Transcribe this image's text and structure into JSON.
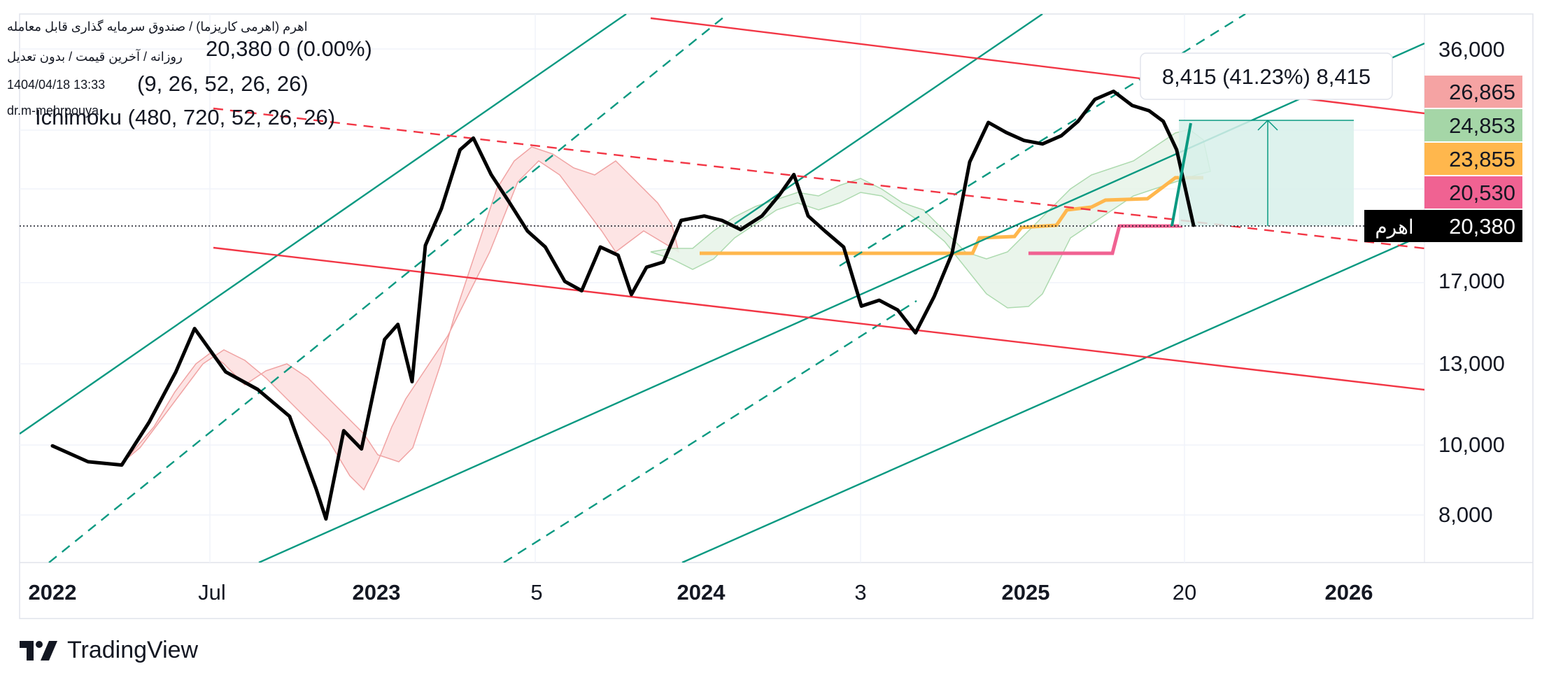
{
  "header": {
    "symbol_line": "اهرم (اهرمی کاریزما) / صندوق سرمایه گذاری قابل معامله",
    "price_line": "20,380  0 (0.00%)",
    "interval_line": "روزانه / آخرین قیمت / بدون تعدیل",
    "ichimoku_short": "(9, 26, 52, 26, 26)",
    "datetime": "1404/04/18 13:33",
    "author": "dr.m-mehrpouya",
    "ichimoku_long": "Ichimoku (480, 720, 52, 26, 26)"
  },
  "measure_label": "8,415 (41.23%) 8,415",
  "price_axis": {
    "scale": "log",
    "ticks": [
      "36,000",
      "17,000",
      "13,000",
      "10,000",
      "8,000"
    ]
  },
  "time_axis": {
    "ticks": [
      {
        "label": "2022",
        "bold": true
      },
      {
        "label": "Jul",
        "bold": false
      },
      {
        "label": "2023",
        "bold": true
      },
      {
        "label": "5",
        "bold": false
      },
      {
        "label": "2024",
        "bold": true
      },
      {
        "label": "3",
        "bold": false
      },
      {
        "label": "2025",
        "bold": true
      },
      {
        "label": "20",
        "bold": false
      },
      {
        "label": "2026",
        "bold": true
      }
    ]
  },
  "price_tags": [
    {
      "value": "26,865",
      "color": "#f5a3a3"
    },
    {
      "value": "24,853",
      "color": "#a5d6a7"
    },
    {
      "value": "23,855",
      "color": "#ffb74d"
    },
    {
      "value": "20,530",
      "color": "#f06292"
    },
    {
      "value": "20,380",
      "color": "#000000",
      "text_color": "#ffffff",
      "symbol": "اهرم"
    }
  ],
  "footer": {
    "brand": "TradingView"
  },
  "colors": {
    "price_line": "#000000",
    "channel_green": "#089981",
    "channel_red": "#f23645",
    "cloud_green": "#a5d6a7",
    "cloud_red": "#ef9a9a",
    "kijun_orange": "#ffb74d",
    "kijun_pink": "#f06292"
  },
  "chart_data": {
    "type": "line",
    "title": "اهرم (اهرمی کاریزما) / صندوق سرمایه گذاری قابل معامله",
    "y_scale": "log",
    "ylim": [
      7000,
      37000
    ],
    "xlim": [
      "2022-01-01",
      "2026-04-01"
    ],
    "series": [
      {
        "x": [
          "2022-01-01",
          "2022-02-10",
          "2022-03-20",
          "2022-04-20",
          "2022-05-20",
          "2022-06-10",
          "2022-07-15",
          "2022-08-20",
          "2022-09-25",
          "2022-10-25",
          "2022-11-05",
          "2022-11-25",
          "2022-12-15",
          "2023-01-10",
          "2023-01-25",
          "2023-02-10",
          "2023-02-25",
          "2023-03-15",
          "2023-04-05",
          "2023-04-20",
          "2023-05-10",
          "2023-05-30",
          "2023-06-20",
          "2023-07-10",
          "2023-08-01",
          "2023-08-20",
          "2023-09-10",
          "2023-09-30",
          "2023-10-15",
          "2023-11-01",
          "2023-11-20",
          "2023-12-10",
          "2024-01-05",
          "2024-01-25",
          "2024-02-15",
          "2024-03-10",
          "2024-03-30",
          "2024-04-15",
          "2024-05-01",
          "2024-05-20",
          "2024-06-10",
          "2024-06-30",
          "2024-07-20",
          "2024-08-10",
          "2024-08-30",
          "2024-09-20",
          "2024-10-10",
          "2024-10-30",
          "2024-11-20",
          "2024-12-10",
          "2024-12-30",
          "2025-01-20",
          "2025-02-10",
          "2025-03-01",
          "2025-03-20",
          "2025-04-10",
          "2025-05-01",
          "2025-05-20",
          "2025-06-05",
          "2025-06-20",
          "2025-07-09"
        ],
        "y": [
          10000,
          9500,
          9400,
          10800,
          12700,
          14600,
          12700,
          12000,
          11000,
          8700,
          7900,
          10500,
          9900,
          14100,
          14800,
          12300,
          19100,
          21500,
          26000,
          27000,
          24000,
          22000,
          20000,
          19000,
          17000,
          16500,
          19000,
          18500,
          16300,
          17800,
          18100,
          20700,
          21000,
          20700,
          20100,
          21000,
          22500,
          24000,
          21000,
          20000,
          19000,
          15700,
          16000,
          15500,
          14400,
          16200,
          18600,
          25000,
          28400,
          27500,
          26800,
          26500,
          27200,
          28500,
          30600,
          31400,
          30000,
          29500,
          28500,
          26000,
          20380
        ]
      }
    ],
    "ichimoku": [
      "(9, 26, 52, 26, 26)",
      "(480, 720, 52, 26, 26)"
    ],
    "last_price": 20380,
    "measure": {
      "from": 20380,
      "to": 28795,
      "change": 8415,
      "percent": 41.23
    }
  }
}
